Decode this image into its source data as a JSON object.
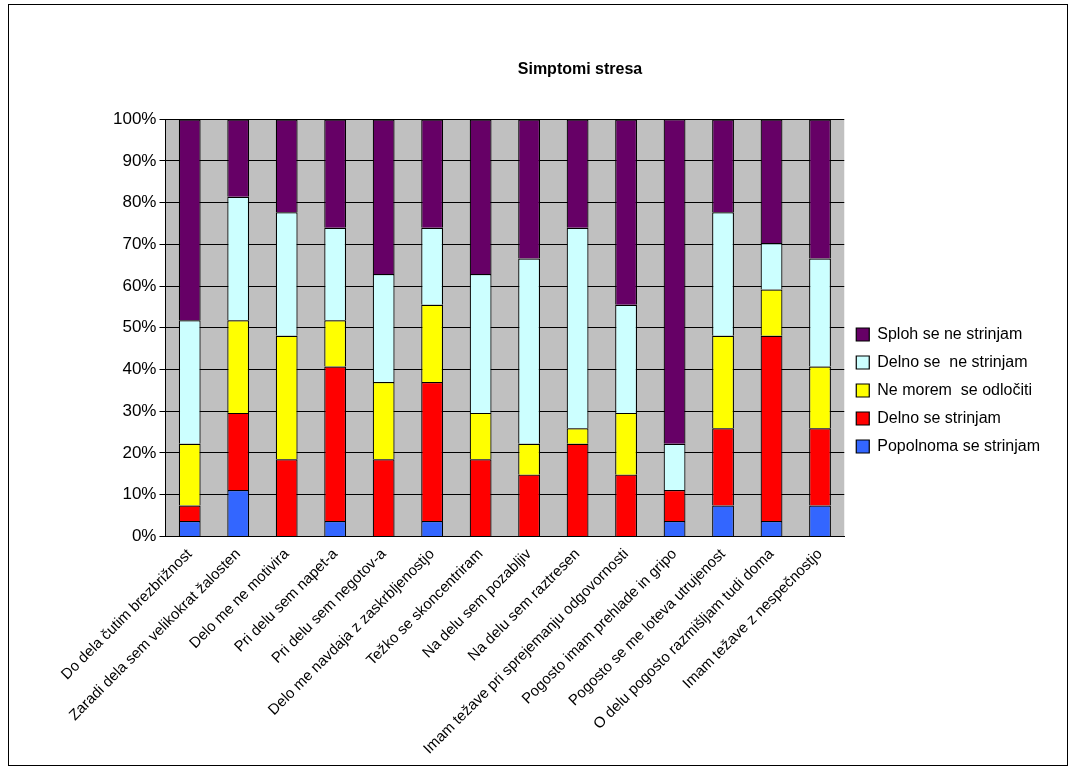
{
  "chart_data": {
    "type": "bar",
    "title": "Simptomi stresa",
    "stacked": true,
    "legend": "right",
    "grid": "y",
    "categories": [
      "Do dela čutim brezbrižnost",
      "Zaradi dela sem velikokrat žalosten",
      "Delo me ne motivira",
      "Pri delu sem napet-a",
      "Pri delu sem negotov-a",
      "Delo me navdaja z zaskrbljenostjo",
      "Težko se skoncentriram",
      "Na delu sem pozabljiv",
      "Na delu sem raztresen",
      "Imam težave pri sprejemanju odgovornosti",
      "Pogosto imam prehlade in gripo",
      "Pogosto se me loteva utrujenost",
      "O delu pogosto razmišljam tudi doma",
      "Imam težave z nespečnostjo"
    ],
    "ylim": [
      0,
      100
    ],
    "yticks": [
      {
        "value": 0,
        "label": "0%"
      },
      {
        "value": 10,
        "label": "10%"
      },
      {
        "value": 20,
        "label": "20%"
      },
      {
        "value": 30,
        "label": "30%"
      },
      {
        "value": 40,
        "label": "40%"
      },
      {
        "value": 50,
        "label": "50%"
      },
      {
        "value": 60,
        "label": "60%"
      },
      {
        "value": 70,
        "label": "70%"
      },
      {
        "value": 80,
        "label": "80%"
      },
      {
        "value": 90,
        "label": "90%"
      },
      {
        "value": 100,
        "label": "100%"
      }
    ],
    "series": [
      {
        "name": "Popolnoma se strinjam",
        "color": "#3366ff",
        "values": [
          3.7,
          11.1,
          0,
          3.7,
          0,
          3.7,
          0,
          0,
          0,
          0,
          3.7,
          7.4,
          3.7,
          7.4
        ]
      },
      {
        "name": "Delno se strinjam",
        "color": "#ff0000",
        "values": [
          3.7,
          18.5,
          18.5,
          37.0,
          18.5,
          33.3,
          18.5,
          14.8,
          22.2,
          14.8,
          7.4,
          18.5,
          44.4,
          18.5
        ]
      },
      {
        "name": "Ne morem  se odločiti",
        "color": "#ffff00",
        "values": [
          14.8,
          22.2,
          29.6,
          11.1,
          18.5,
          18.5,
          11.1,
          7.4,
          3.7,
          14.8,
          0,
          22.2,
          11.1,
          14.8
        ]
      },
      {
        "name": "Delno se  ne strinjam",
        "color": "#ccffff",
        "values": [
          29.6,
          29.6,
          29.6,
          22.2,
          25.9,
          18.5,
          33.3,
          44.4,
          48.1,
          25.9,
          11.1,
          29.6,
          11.1,
          25.9
        ]
      },
      {
        "name": "Sploh se ne strinjam",
        "color": "#660066",
        "values": [
          48.1,
          18.5,
          22.2,
          25.9,
          37.0,
          25.9,
          37.0,
          33.3,
          25.9,
          44.4,
          77.8,
          22.2,
          29.6,
          33.3
        ]
      }
    ]
  }
}
